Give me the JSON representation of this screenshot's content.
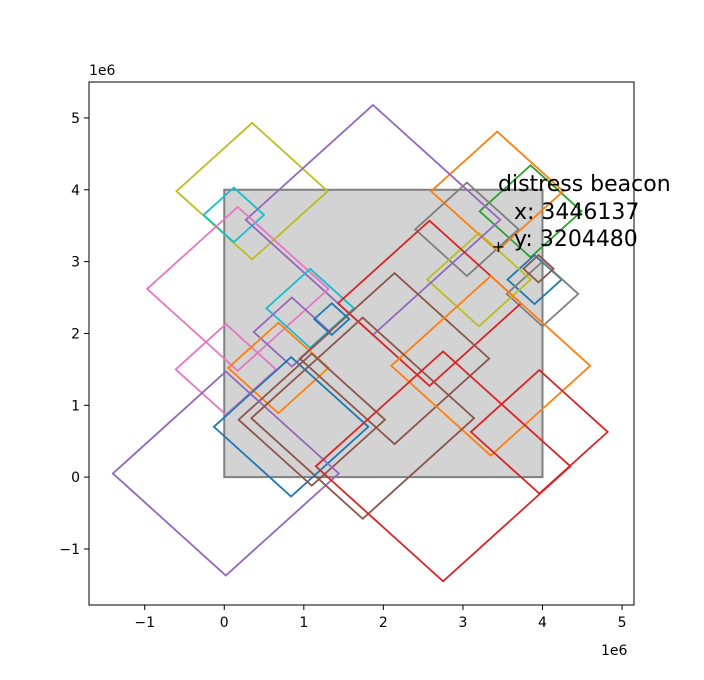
{
  "chart_data": {
    "type": "scatter",
    "title": "",
    "xlabel": "",
    "ylabel": "",
    "x_offset_label": "1e6",
    "y_offset_label": "1e6",
    "xlim": [
      -1.7,
      5.15
    ],
    "ylim": [
      -1.78,
      5.5
    ],
    "grid": false,
    "x_ticks": [
      -1,
      0,
      1,
      2,
      3,
      4,
      5
    ],
    "y_ticks": [
      -1,
      0,
      1,
      2,
      3,
      4,
      5
    ],
    "x_tick_labels": [
      "−1",
      "0",
      "1",
      "2",
      "3",
      "4",
      "5"
    ],
    "y_tick_labels": [
      "−1",
      "0",
      "1",
      "2",
      "3",
      "4",
      "5"
    ],
    "region": {
      "x": [
        0,
        4
      ],
      "y": [
        0,
        4
      ],
      "fill": "#d3d3d3",
      "edge": "#808080"
    },
    "diamonds": [
      {
        "cx": 3.85,
        "cy": 3.7,
        "r": 0.64,
        "color": "#2ca02c"
      },
      {
        "cx": 3.43,
        "cy": 3.98,
        "r": 0.83,
        "color": "#ff7f0e"
      },
      {
        "cx": 3.9,
        "cy": 2.75,
        "r": 0.34,
        "color": "#1f77b4"
      },
      {
        "cx": 4.0,
        "cy": 2.55,
        "r": 0.45,
        "color": "#7f7f7f"
      },
      {
        "cx": 3.95,
        "cy": 2.9,
        "r": 0.19,
        "color": "#8c564b"
      },
      {
        "cx": 3.05,
        "cy": 3.45,
        "r": 0.65,
        "color": "#7f7f7f"
      },
      {
        "cx": 3.2,
        "cy": 2.75,
        "r": 0.65,
        "color": "#bcbd22"
      },
      {
        "cx": 0.35,
        "cy": 3.98,
        "r": 0.95,
        "color": "#bcbd22"
      },
      {
        "cx": 0.12,
        "cy": 3.65,
        "r": 0.38,
        "color": "#17becf"
      },
      {
        "cx": 1.87,
        "cy": 3.58,
        "r": 1.6,
        "color": "#9467bd"
      },
      {
        "cx": 0.17,
        "cy": 2.62,
        "r": 1.14,
        "color": "#e377c2"
      },
      {
        "cx": 1.08,
        "cy": 2.35,
        "r": 0.55,
        "color": "#17becf"
      },
      {
        "cx": 0.85,
        "cy": 2.02,
        "r": 0.48,
        "color": "#9467bd"
      },
      {
        "cx": 1.35,
        "cy": 2.2,
        "r": 0.22,
        "color": "#1f77b4"
      },
      {
        "cx": 0.02,
        "cy": 1.5,
        "r": 0.63,
        "color": "#e377c2"
      },
      {
        "cx": 0.68,
        "cy": 1.52,
        "r": 0.63,
        "color": "#ff7f0e"
      },
      {
        "cx": 2.58,
        "cy": 2.42,
        "r": 1.15,
        "color": "#d62728"
      },
      {
        "cx": 2.14,
        "cy": 1.65,
        "r": 1.19,
        "color": "#8c564b"
      },
      {
        "cx": 3.35,
        "cy": 1.55,
        "r": 1.25,
        "color": "#ff7f0e"
      },
      {
        "cx": 0.84,
        "cy": 0.7,
        "r": 0.97,
        "color": "#1f77b4"
      },
      {
        "cx": 1.1,
        "cy": 0.8,
        "r": 0.92,
        "color": "#8c564b"
      },
      {
        "cx": 0.02,
        "cy": 0.05,
        "r": 1.42,
        "color": "#9467bd"
      },
      {
        "cx": 1.74,
        "cy": 0.82,
        "r": 1.4,
        "color": "#8c564b"
      },
      {
        "cx": 2.75,
        "cy": 0.15,
        "r": 1.6,
        "color": "#d62728"
      },
      {
        "cx": 3.96,
        "cy": 0.63,
        "r": 0.86,
        "color": "#d62728"
      }
    ],
    "point": {
      "x": 3446137,
      "y": 3204480,
      "marker": "+"
    },
    "annotation": {
      "title": "distress beacon",
      "x_text": "x: 3446137",
      "y_text": "y: 3204480"
    }
  }
}
